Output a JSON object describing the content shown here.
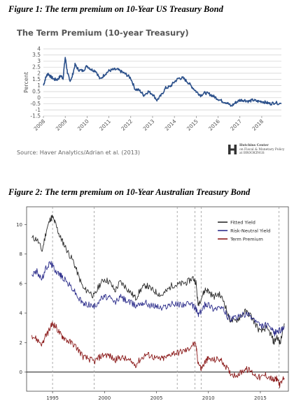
{
  "figure1": {
    "caption": "Figure 1: The term premium on 10-Year US Treasury Bond",
    "source": "Source: Haver Analytics/Adrian et al. (2013)",
    "logo": {
      "name": "Hutchins Center",
      "line2": "on Fiscal & Monetary Policy",
      "line3": "at BROOKINGS"
    }
  },
  "figure2": {
    "caption": "Figure 2: The term premium on 10-Year Australian Treasury Bond"
  },
  "chart_data": [
    {
      "type": "line",
      "title": "The Term Premium (10-year Treasury)",
      "ylabel": "Percent",
      "xlabel": "",
      "xlim": [
        2008,
        2018.9
      ],
      "ylim": [
        -1.5,
        4
      ],
      "x_ticks": [
        "2008",
        "2009",
        "2010",
        "2011",
        "2012",
        "2013",
        "2014",
        "2015",
        "2016",
        "2017",
        "2018"
      ],
      "y_ticks": [
        "4",
        "3.5",
        "3",
        "2.5",
        "2",
        "1.5",
        "1",
        "0.5",
        "0",
        "-0.5",
        "-1",
        "-1.5"
      ],
      "grid": true,
      "color": "#2a4f8a",
      "series": [
        {
          "name": "",
          "x": [
            2008.0,
            2008.1,
            2008.2,
            2008.35,
            2008.5,
            2008.65,
            2008.8,
            2008.9,
            2009.0,
            2009.1,
            2009.2,
            2009.3,
            2009.45,
            2009.6,
            2009.8,
            2010.0,
            2010.2,
            2010.4,
            2010.6,
            2010.8,
            2011.0,
            2011.2,
            2011.4,
            2011.6,
            2011.8,
            2012.0,
            2012.2,
            2012.4,
            2012.6,
            2012.8,
            2013.0,
            2013.2,
            2013.4,
            2013.6,
            2013.8,
            2014.0,
            2014.2,
            2014.4,
            2014.6,
            2014.8,
            2015.0,
            2015.2,
            2015.4,
            2015.6,
            2015.8,
            2016.0,
            2016.2,
            2016.4,
            2016.6,
            2016.8,
            2017.0,
            2017.2,
            2017.4,
            2017.6,
            2017.8,
            2018.0,
            2018.2,
            2018.4,
            2018.6,
            2018.9
          ],
          "y": [
            1.0,
            1.6,
            2.0,
            1.7,
            1.5,
            1.5,
            1.8,
            1.6,
            3.3,
            2.1,
            1.4,
            1.6,
            2.7,
            2.3,
            2.2,
            2.6,
            2.3,
            2.2,
            1.5,
            1.9,
            2.2,
            2.3,
            2.3,
            2.1,
            1.9,
            1.6,
            0.7,
            0.6,
            0.2,
            0.5,
            0.3,
            -0.2,
            0.2,
            0.8,
            0.9,
            1.3,
            1.6,
            1.6,
            1.3,
            0.9,
            0.5,
            0.2,
            0.4,
            0.3,
            0.1,
            -0.1,
            -0.3,
            -0.4,
            -0.7,
            -0.4,
            -0.2,
            -0.2,
            -0.3,
            -0.2,
            -0.3,
            -0.3,
            -0.4,
            -0.5,
            -0.4,
            -0.5
          ]
        }
      ]
    },
    {
      "type": "line",
      "title": "",
      "xlabel": "",
      "ylabel": "",
      "xlim": [
        1992.5,
        2017.7
      ],
      "ylim": [
        -1.3,
        11.2
      ],
      "x_ticks": [
        "1995",
        "2000",
        "2005",
        "2010",
        "2015"
      ],
      "y_ticks": [
        "10",
        "8",
        "6",
        "4",
        "2",
        "0"
      ],
      "grid": false,
      "legend": "top-right",
      "vlines": [
        1995.0,
        1999.0,
        2007.0,
        2008.7,
        2009.3,
        2016.8
      ],
      "series": [
        {
          "name": "Fitted Yield",
          "color": "#2b2b2b",
          "x": [
            1993.0,
            1993.5,
            1994.0,
            1994.4,
            1994.8,
            1995.0,
            1995.3,
            1995.7,
            1996.0,
            1996.5,
            1997.0,
            1997.5,
            1998.0,
            1998.5,
            1999.0,
            1999.5,
            2000.0,
            2000.5,
            2001.0,
            2001.5,
            2002.0,
            2002.5,
            2003.0,
            2003.5,
            2004.0,
            2004.5,
            2005.0,
            2005.5,
            2006.0,
            2006.5,
            2007.0,
            2007.5,
            2008.0,
            2008.5,
            2008.8,
            2009.0,
            2009.3,
            2009.7,
            2010.0,
            2010.5,
            2011.0,
            2011.5,
            2012.0,
            2012.5,
            2013.0,
            2013.5,
            2014.0,
            2014.5,
            2015.0,
            2015.5,
            2016.0,
            2016.3,
            2016.6,
            2016.9,
            2017.3
          ],
          "y": [
            9.1,
            9.0,
            8.2,
            9.6,
            10.4,
            10.5,
            10.0,
            9.2,
            8.8,
            8.1,
            7.5,
            6.5,
            5.6,
            5.5,
            5.1,
            5.9,
            6.3,
            6.1,
            5.5,
            6.1,
            5.8,
            5.4,
            5.0,
            5.6,
            5.9,
            5.6,
            5.4,
            5.2,
            5.5,
            5.9,
            5.9,
            6.0,
            6.1,
            6.4,
            6.1,
            4.6,
            5.0,
            5.6,
            5.5,
            5.1,
            5.3,
            4.8,
            3.6,
            3.4,
            3.7,
            4.1,
            3.9,
            3.3,
            2.7,
            3.0,
            2.6,
            2.0,
            2.4,
            1.9,
            3.3
          ]
        },
        {
          "name": "Risk-Neutral Yield",
          "color": "#2e2f8c",
          "x": [
            1993.0,
            1993.5,
            1994.0,
            1994.4,
            1994.8,
            1995.0,
            1995.3,
            1995.7,
            1996.0,
            1996.5,
            1997.0,
            1997.5,
            1998.0,
            1998.5,
            1999.0,
            1999.5,
            2000.0,
            2000.5,
            2001.0,
            2001.5,
            2002.0,
            2002.5,
            2003.0,
            2003.5,
            2004.0,
            2004.5,
            2005.0,
            2005.5,
            2006.0,
            2006.5,
            2007.0,
            2007.5,
            2008.0,
            2008.5,
            2008.8,
            2009.0,
            2009.3,
            2009.7,
            2010.0,
            2010.5,
            2011.0,
            2011.5,
            2012.0,
            2012.5,
            2013.0,
            2013.5,
            2014.0,
            2014.5,
            2015.0,
            2015.5,
            2016.0,
            2016.3,
            2016.6,
            2016.9,
            2017.3
          ],
          "y": [
            6.6,
            6.8,
            6.3,
            7.1,
            7.4,
            7.2,
            6.9,
            6.6,
            6.4,
            6.0,
            5.6,
            5.0,
            4.6,
            4.6,
            4.4,
            4.9,
            5.1,
            5.0,
            4.7,
            5.1,
            4.9,
            4.7,
            4.5,
            4.7,
            4.7,
            4.5,
            4.5,
            4.3,
            4.5,
            4.6,
            4.6,
            4.6,
            4.6,
            4.5,
            4.3,
            3.9,
            4.1,
            4.6,
            4.6,
            4.3,
            4.4,
            4.2,
            3.6,
            3.6,
            3.8,
            3.9,
            3.8,
            3.5,
            3.1,
            3.2,
            3.0,
            2.6,
            2.8,
            2.8,
            3.1
          ]
        },
        {
          "name": "Term Premium",
          "color": "#8b1a1a",
          "x": [
            1993.0,
            1993.5,
            1994.0,
            1994.4,
            1994.8,
            1995.0,
            1995.3,
            1995.7,
            1996.0,
            1996.5,
            1997.0,
            1997.5,
            1998.0,
            1998.5,
            1999.0,
            1999.5,
            2000.0,
            2000.5,
            2001.0,
            2001.5,
            2002.0,
            2002.5,
            2003.0,
            2003.5,
            2004.0,
            2004.5,
            2005.0,
            2005.5,
            2006.0,
            2006.5,
            2007.0,
            2007.5,
            2008.0,
            2008.5,
            2008.8,
            2009.0,
            2009.3,
            2009.7,
            2010.0,
            2010.5,
            2011.0,
            2011.5,
            2012.0,
            2012.5,
            2013.0,
            2013.5,
            2014.0,
            2014.5,
            2015.0,
            2015.5,
            2016.0,
            2016.3,
            2016.6,
            2016.9,
            2017.3
          ],
          "y": [
            2.5,
            2.2,
            1.9,
            2.5,
            3.0,
            3.3,
            3.1,
            2.6,
            2.4,
            2.1,
            1.9,
            1.5,
            1.0,
            0.9,
            0.7,
            1.0,
            1.2,
            1.1,
            0.8,
            1.0,
            0.9,
            0.7,
            0.5,
            0.9,
            1.2,
            1.1,
            0.9,
            0.9,
            1.0,
            1.3,
            1.3,
            1.4,
            1.5,
            1.9,
            1.8,
            0.7,
            0.2,
            0.7,
            0.9,
            0.8,
            0.9,
            0.6,
            0.0,
            -0.2,
            -0.1,
            0.2,
            0.1,
            -0.2,
            -0.4,
            -0.2,
            -0.4,
            -0.6,
            -0.4,
            -0.9,
            -0.4
          ]
        }
      ]
    }
  ]
}
